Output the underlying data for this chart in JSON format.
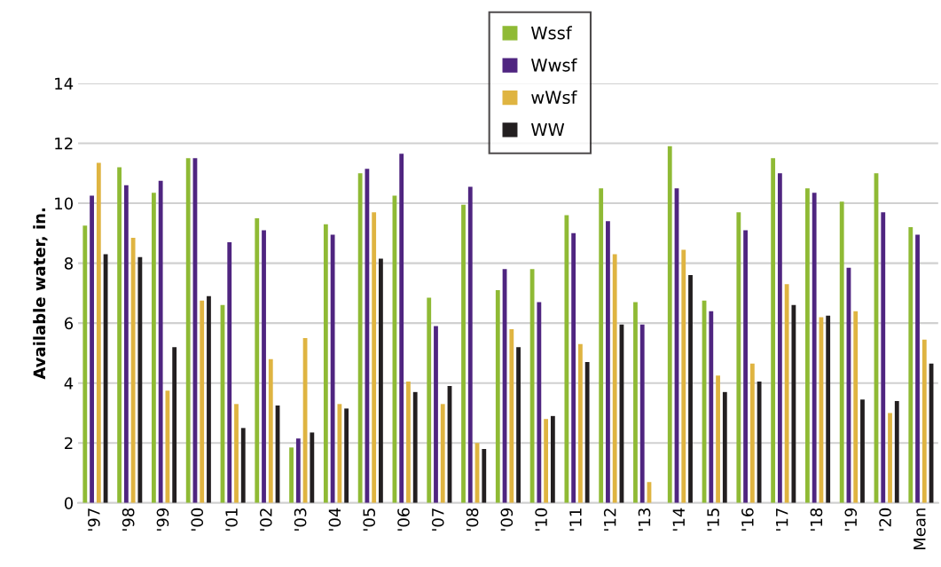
{
  "chart_data": {
    "type": "bar",
    "ylabel": "Available water, in.",
    "categories": [
      "'97",
      "'98",
      "'99",
      "'00",
      "'01",
      "'02",
      "'03",
      "'04",
      "'05",
      "'06",
      "'07",
      "'08",
      "'09",
      "'10",
      "'11",
      "'12",
      "'13",
      "'14",
      "'15",
      "'16",
      "'17",
      "'18",
      "'19",
      "'20",
      "Mean"
    ],
    "series": [
      {
        "name": "Wssf",
        "color": "#8fba35",
        "values": [
          9.25,
          11.2,
          10.35,
          11.5,
          6.6,
          9.5,
          1.85,
          9.3,
          11.0,
          10.25,
          6.85,
          9.95,
          7.1,
          7.8,
          9.6,
          10.5,
          6.7,
          11.9,
          6.75,
          9.7,
          11.5,
          10.5,
          10.05,
          11.0,
          9.2
        ]
      },
      {
        "name": "Wwsf",
        "color": "#4f2580",
        "values": [
          10.25,
          10.6,
          10.75,
          11.5,
          8.7,
          9.1,
          2.15,
          8.95,
          11.15,
          11.65,
          5.9,
          10.55,
          7.8,
          6.7,
          9.0,
          9.4,
          5.95,
          10.5,
          6.4,
          9.1,
          11.0,
          10.35,
          7.85,
          9.7,
          8.95
        ]
      },
      {
        "name": "wWsf",
        "color": "#dfb441",
        "values": [
          11.35,
          8.85,
          3.75,
          6.75,
          3.3,
          4.8,
          5.5,
          3.3,
          9.7,
          4.05,
          3.3,
          2.0,
          5.8,
          2.8,
          5.3,
          8.3,
          0.7,
          8.45,
          4.25,
          4.65,
          7.3,
          6.2,
          6.4,
          3.0,
          5.45
        ]
      },
      {
        "name": "WW",
        "color": "#231f20",
        "values": [
          8.3,
          8.2,
          5.2,
          6.9,
          2.5,
          3.25,
          2.35,
          3.15,
          8.15,
          3.7,
          3.9,
          1.8,
          5.2,
          2.9,
          4.7,
          5.95,
          null,
          7.6,
          3.7,
          4.05,
          6.6,
          6.25,
          3.45,
          3.4,
          4.65
        ]
      }
    ],
    "ylim": [
      0,
      14
    ],
    "yticks": [
      0,
      2,
      4,
      6,
      8,
      10,
      12,
      14
    ],
    "grid": "y",
    "legend": "top"
  }
}
